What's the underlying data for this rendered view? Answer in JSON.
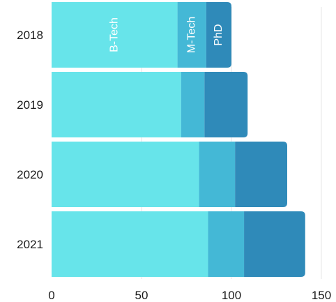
{
  "chart_data": {
    "type": "bar",
    "orientation": "horizontal",
    "stacked": true,
    "categories": [
      "2018",
      "2019",
      "2020",
      "2021"
    ],
    "series": [
      {
        "name": "B-Tech",
        "color": "#67e4ea",
        "values": [
          70,
          72,
          82,
          87
        ]
      },
      {
        "name": "M-Tech",
        "color": "#44b8d6",
        "values": [
          16,
          13,
          20,
          20
        ]
      },
      {
        "name": "PhD",
        "color": "#2f8ab9",
        "values": [
          14,
          24,
          29,
          34
        ]
      }
    ],
    "xlim": [
      0,
      150
    ],
    "xticks": [
      0,
      50,
      100,
      150
    ],
    "title": "",
    "xlabel": "",
    "ylabel": "",
    "grid": "vertical",
    "legend": "none (series names printed inside first bar)"
  }
}
